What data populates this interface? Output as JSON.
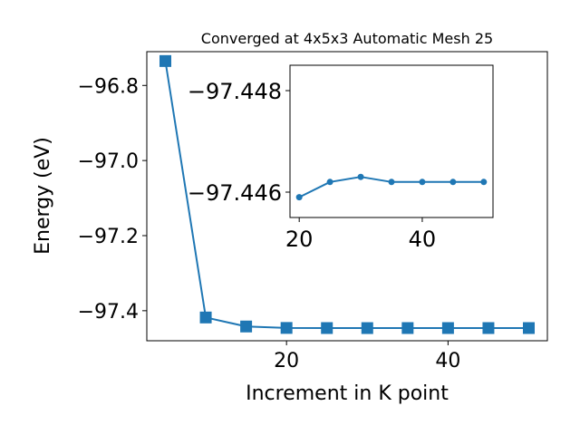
{
  "chart_data": [
    {
      "type": "line",
      "title": "Converged at 4x5x3 Automatic Mesh 25",
      "xlabel": "Increment in K point",
      "ylabel": "Energy (eV)",
      "xlim": [
        2.7,
        52.3
      ],
      "ylim": [
        -97.48,
        -96.71
      ],
      "xticks": [
        20,
        40
      ],
      "yticks": [
        -96.8,
        -97.0,
        -97.2,
        -97.4
      ],
      "xtick_labels": [
        "20",
        "40"
      ],
      "ytick_labels": [
        "−96.8",
        "−97.0",
        "−97.2",
        "−97.4"
      ],
      "grid": false,
      "marker": "square",
      "color": "#1f77b4",
      "series": [
        {
          "x": [
            5,
            10,
            15,
            20,
            25,
            30,
            35,
            40,
            45,
            50
          ],
          "y": [
            -96.735,
            -97.418,
            -97.442,
            -97.4459,
            -97.4462,
            -97.4463,
            -97.4462,
            -97.4462,
            -97.4462,
            -97.4462
          ]
        }
      ]
    },
    {
      "type": "line",
      "title": "",
      "xlabel": "",
      "ylabel": "",
      "placement": "inset",
      "xlim": [
        18.5,
        51.5
      ],
      "ylim": [
        -97.4455,
        -97.4485
      ],
      "xticks": [
        20,
        40
      ],
      "yticks": [
        -97.448,
        -97.446
      ],
      "xtick_labels": [
        "20",
        "40"
      ],
      "ytick_labels": [
        "−97.448",
        "−97.446"
      ],
      "grid": false,
      "marker": "circle",
      "color": "#1f77b4",
      "series": [
        {
          "x": [
            20,
            25,
            30,
            35,
            40,
            45,
            50
          ],
          "y": [
            -97.4459,
            -97.4462,
            -97.4463,
            -97.4462,
            -97.4462,
            -97.4462,
            -97.4462
          ]
        }
      ]
    }
  ]
}
